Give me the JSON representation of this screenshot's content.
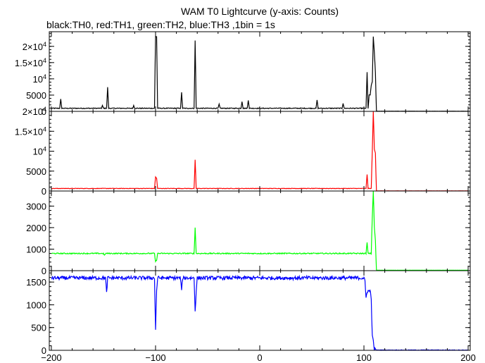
{
  "title": "WAM T0 Lightcurve (y-axis: Counts)",
  "subtitle": "black:TH0, red:TH1, green:TH2, blue:TH3 ,1bin = 1s",
  "chart_data": {
    "type": "line",
    "x_range": [
      -202,
      202
    ],
    "x_ticks": [
      -200,
      -100,
      0,
      100,
      200
    ],
    "x_tick_labels": [
      "−200",
      "−100",
      "0",
      "100",
      "200"
    ],
    "panels": [
      {
        "name": "TH0",
        "color": "#000000",
        "y_range": [
          0,
          24500
        ],
        "y_ticks": [
          0,
          5000,
          10000,
          15000,
          20000
        ],
        "y_tick_labels": [
          [
            "0",
            ""
          ],
          [
            "5000",
            ""
          ],
          [
            "10",
            "4"
          ],
          [
            "1.5×10",
            "4"
          ],
          [
            "2×10",
            "4"
          ]
        ],
        "baseline": 950,
        "noise": 120,
        "after_value": 60,
        "points": [
          [
            -200,
            950
          ],
          [
            -192,
            950
          ],
          [
            -191,
            3700
          ],
          [
            -190,
            950
          ],
          [
            -152,
            950
          ],
          [
            -151,
            1800
          ],
          [
            -150,
            950
          ],
          [
            -147,
            950
          ],
          [
            -146,
            7500
          ],
          [
            -145,
            950
          ],
          [
            -122,
            950
          ],
          [
            -121,
            1800
          ],
          [
            -120,
            950
          ],
          [
            -101,
            950
          ],
          [
            -100,
            23000
          ],
          [
            -99,
            23000
          ],
          [
            -98,
            950
          ],
          [
            -76,
            950
          ],
          [
            -75,
            5800
          ],
          [
            -74,
            950
          ],
          [
            -63,
            950
          ],
          [
            -62,
            21800
          ],
          [
            -61,
            950
          ],
          [
            -40,
            950
          ],
          [
            -39,
            2200
          ],
          [
            -38,
            950
          ],
          [
            -18,
            950
          ],
          [
            -17,
            3100
          ],
          [
            -16,
            950
          ],
          [
            -12,
            950
          ],
          [
            -11,
            3500
          ],
          [
            -10,
            950
          ],
          [
            54,
            950
          ],
          [
            55,
            3500
          ],
          [
            56,
            950
          ],
          [
            79,
            950
          ],
          [
            80,
            2500
          ],
          [
            81,
            950
          ],
          [
            102,
            950
          ],
          [
            103,
            12000
          ],
          [
            104,
            950
          ],
          [
            105,
            5000
          ],
          [
            106,
            5000
          ],
          [
            107,
            8000
          ],
          [
            108,
            9000
          ],
          [
            109,
            23000
          ],
          [
            110,
            18000
          ],
          [
            111,
            12000
          ],
          [
            112,
            60
          ],
          [
            202,
            60
          ]
        ]
      },
      {
        "name": "TH1",
        "color": "#ff0000",
        "y_range": [
          0,
          20000
        ],
        "y_ticks": [
          0,
          5000,
          10000,
          15000,
          20000
        ],
        "y_tick_labels": [
          [
            "0",
            ""
          ],
          [
            "5000",
            ""
          ],
          [
            "10",
            "4"
          ],
          [
            "1.5×10",
            "4"
          ],
          [
            "2×10",
            "4"
          ]
        ],
        "baseline": 640,
        "noise": 60,
        "after_value": 40,
        "points": [
          [
            -200,
            640
          ],
          [
            -101,
            640
          ],
          [
            -100,
            3500
          ],
          [
            -99,
            3200
          ],
          [
            -98,
            640
          ],
          [
            -63,
            640
          ],
          [
            -62,
            7800
          ],
          [
            -61,
            640
          ],
          [
            102,
            640
          ],
          [
            103,
            4200
          ],
          [
            104,
            640
          ],
          [
            107,
            640
          ],
          [
            108,
            10000
          ],
          [
            109,
            20000
          ],
          [
            110,
            10500
          ],
          [
            111,
            9500
          ],
          [
            112,
            40
          ],
          [
            202,
            40
          ]
        ]
      },
      {
        "name": "TH2",
        "color": "#00ff00",
        "y_range": [
          0,
          3700
        ],
        "y_ticks": [
          0,
          1000,
          2000,
          3000
        ],
        "y_tick_labels": [
          [
            "0",
            ""
          ],
          [
            "1000",
            ""
          ],
          [
            "2000",
            ""
          ],
          [
            "3000",
            ""
          ]
        ],
        "baseline": 800,
        "noise": 25,
        "after_value": 20,
        "points": [
          [
            -200,
            800
          ],
          [
            -150,
            800
          ],
          [
            -149,
            700
          ],
          [
            -148,
            800
          ],
          [
            -101,
            800
          ],
          [
            -100,
            400
          ],
          [
            -99,
            500
          ],
          [
            -98,
            800
          ],
          [
            -63,
            800
          ],
          [
            -62,
            2000
          ],
          [
            -61,
            800
          ],
          [
            102,
            800
          ],
          [
            103,
            1300
          ],
          [
            104,
            800
          ],
          [
            107,
            800
          ],
          [
            108,
            2500
          ],
          [
            109,
            3700
          ],
          [
            110,
            2000
          ],
          [
            111,
            1400
          ],
          [
            112,
            20
          ],
          [
            202,
            20
          ]
        ]
      },
      {
        "name": "TH3",
        "color": "#0000ff",
        "y_range": [
          0,
          1750
        ],
        "y_ticks": [
          0,
          500,
          1000,
          1500
        ],
        "y_tick_labels": [
          [
            "0",
            ""
          ],
          [
            "500",
            ""
          ],
          [
            "1000",
            ""
          ],
          [
            "1500",
            ""
          ]
        ],
        "baseline": 1590,
        "noise": 40,
        "after_value": 5,
        "points": [
          [
            -200,
            1590
          ],
          [
            -148,
            1590
          ],
          [
            -147,
            1250
          ],
          [
            -146,
            1590
          ],
          [
            -101,
            1590
          ],
          [
            -100,
            450
          ],
          [
            -99,
            1300
          ],
          [
            -98,
            1590
          ],
          [
            -76,
            1590
          ],
          [
            -75,
            1300
          ],
          [
            -74,
            1590
          ],
          [
            -63,
            1590
          ],
          [
            -62,
            850
          ],
          [
            -61,
            1300
          ],
          [
            -60,
            1590
          ],
          [
            100,
            1590
          ],
          [
            101,
            1500
          ],
          [
            102,
            1150
          ],
          [
            103,
            1300
          ],
          [
            106,
            1300
          ],
          [
            107,
            1150
          ],
          [
            108,
            300
          ],
          [
            109,
            200
          ],
          [
            110,
            30
          ],
          [
            111,
            5
          ],
          [
            202,
            5
          ]
        ]
      }
    ]
  }
}
